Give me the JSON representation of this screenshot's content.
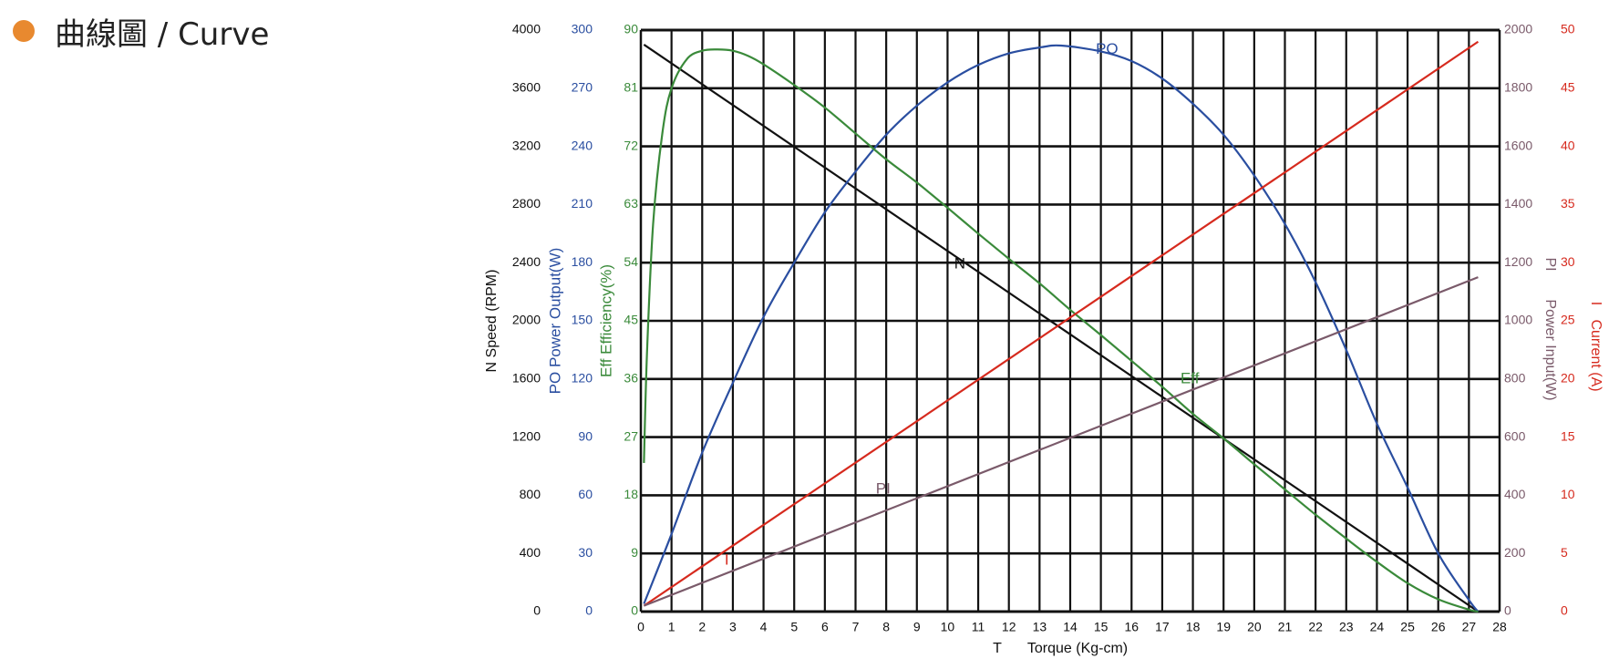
{
  "header": {
    "title": "曲線圖 / Curve"
  },
  "chart_data": {
    "type": "line",
    "colors": {
      "N": "#111111",
      "PO": "#2a4ea0",
      "Eff": "#3a8a3a",
      "PI": "#7a5a6a",
      "I": "#d62a1e",
      "grid": "#111111",
      "header_dot": "#e8892f"
    },
    "x_axis": {
      "label_symbol": "T",
      "label": "Torque (Kg-cm)",
      "range": [
        0,
        28
      ],
      "ticks": [
        "0",
        "1",
        "2",
        "3",
        "4",
        "5",
        "6",
        "7",
        "8",
        "9",
        "10",
        "11",
        "12",
        "13",
        "14",
        "15",
        "16",
        "17",
        "18",
        "19",
        "20",
        "21",
        "22",
        "23",
        "24",
        "25",
        "26",
        "27",
        "28"
      ]
    },
    "y_axes": [
      {
        "id": "N",
        "label": "N Speed (RPM)",
        "range": [
          0,
          4000
        ],
        "ticks": [
          "0",
          "400",
          "800",
          "1200",
          "1600",
          "2000",
          "2400",
          "2800",
          "3200",
          "3600",
          "4000"
        ]
      },
      {
        "id": "PO",
        "label": "PO Power Output(W)",
        "range": [
          0,
          300
        ],
        "ticks": [
          "0",
          "30",
          "60",
          "90",
          "120",
          "150",
          "180",
          "210",
          "240",
          "270",
          "300"
        ]
      },
      {
        "id": "Eff",
        "label": "Eff Efficiency(%)",
        "range": [
          0,
          90
        ],
        "ticks": [
          "0",
          "9",
          "18",
          "27",
          "36",
          "45",
          "54",
          "63",
          "72",
          "81",
          "90"
        ]
      },
      {
        "id": "PI",
        "label_symbol": "PI",
        "label": "Power Input(W)",
        "range": [
          0,
          2000
        ],
        "ticks": [
          "0",
          "200",
          "400",
          "600",
          "800",
          "1000",
          "1200",
          "1400",
          "1600",
          "1800",
          "2000"
        ]
      },
      {
        "id": "I",
        "label_symbol": "I",
        "label": "Current (A)",
        "range": [
          0,
          50
        ],
        "ticks": [
          "0",
          "5",
          "10",
          "15",
          "20",
          "25",
          "30",
          "35",
          "40",
          "45",
          "50"
        ]
      }
    ],
    "series": [
      {
        "id": "N",
        "name": "N",
        "axis": "N",
        "x": [
          0.1,
          27.3
        ],
        "y": [
          3900,
          0
        ]
      },
      {
        "id": "PO",
        "name": "PO",
        "axis": "PO",
        "x": [
          0.1,
          1,
          2,
          3,
          4,
          5,
          6,
          7,
          8,
          9,
          10,
          11,
          12,
          13,
          13.7,
          15,
          16,
          17,
          18,
          19,
          20,
          21,
          22,
          23,
          24,
          25,
          26,
          27,
          27.3
        ],
        "y": [
          4,
          40,
          82,
          118,
          152,
          180,
          206,
          227,
          246,
          261,
          273,
          282,
          288,
          291,
          292,
          289,
          284,
          275,
          262,
          246,
          225,
          200,
          170,
          135,
          97,
          64,
          30,
          6,
          0
        ]
      },
      {
        "id": "Eff",
        "name": "Eff",
        "axis": "Eff",
        "x": [
          0.1,
          0.2,
          0.4,
          0.7,
          1,
          1.5,
          2,
          2.5,
          3,
          3.5,
          4,
          5,
          6,
          7,
          8,
          9,
          10,
          11,
          12,
          13,
          14,
          15,
          16,
          17,
          18,
          19,
          20,
          21,
          22,
          23,
          24,
          25,
          26,
          27,
          27.3
        ],
        "y": [
          23,
          40,
          60,
          74,
          81,
          85.5,
          86.8,
          87,
          86.8,
          86,
          84.7,
          81.5,
          78,
          74,
          70,
          66.4,
          62.5,
          58.5,
          54.6,
          50.8,
          46.7,
          42.8,
          38.8,
          34.8,
          30.6,
          26.8,
          22.8,
          18.9,
          15,
          11.3,
          7.7,
          4.4,
          1.9,
          0.3,
          0
        ]
      },
      {
        "id": "I",
        "name": "I",
        "axis": "I",
        "x": [
          0.1,
          27.3
        ],
        "y": [
          0.5,
          49
        ]
      },
      {
        "id": "PI",
        "name": "PI",
        "axis": "PI",
        "x": [
          0.1,
          27.3
        ],
        "y": [
          20,
          1150
        ]
      }
    ],
    "curve_labels": [
      {
        "series": "PO",
        "text": "PO",
        "x": 15.2,
        "y": 290
      },
      {
        "series": "N",
        "text": "N",
        "x": 10.4,
        "y": 2390
      },
      {
        "series": "Eff",
        "text": "Eff",
        "x": 17.9,
        "y": 36
      },
      {
        "series": "PI",
        "text": "PI",
        "x": 7.9,
        "y": 420
      },
      {
        "series": "I",
        "text": "I",
        "x": 2.8,
        "y": 4.4
      }
    ],
    "grid": true
  }
}
